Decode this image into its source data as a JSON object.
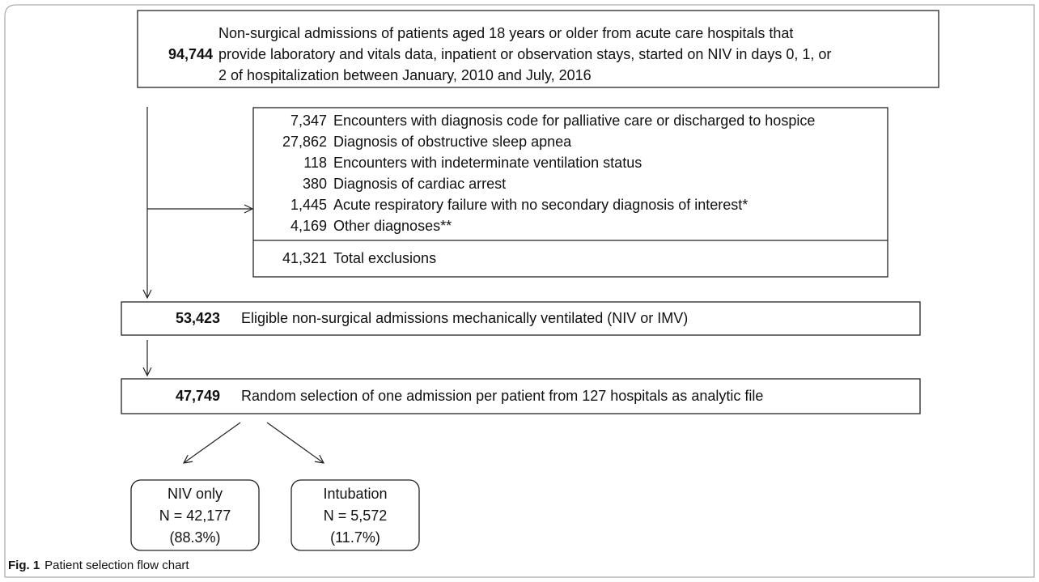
{
  "initial": {
    "count": "94,744",
    "lines": [
      "Non-surgical admissions of patients aged 18 years or older from acute care hospitals that",
      "provide laboratory and vitals data, inpatient or observation stays, started on NIV in days 0, 1, or",
      "2 of hospitalization between January, 2010 and July, 2016"
    ]
  },
  "exclusions": {
    "items": [
      {
        "count": "7,347",
        "label": "Encounters with diagnosis code for palliative care or discharged to hospice"
      },
      {
        "count": "27,862",
        "label": "Diagnosis of obstructive sleep apnea"
      },
      {
        "count": "118",
        "label": "Encounters with indeterminate ventilation status"
      },
      {
        "count": "380",
        "label": "Diagnosis of cardiac arrest"
      },
      {
        "count": "1,445",
        "label": "Acute respiratory failure with no secondary diagnosis of interest*"
      },
      {
        "count": "4,169",
        "label": "Other diagnoses**"
      }
    ],
    "total": {
      "count": "41,321",
      "label": "Total exclusions"
    }
  },
  "eligible": {
    "count": "53,423",
    "label": "Eligible non-surgical admissions mechanically ventilated (NIV or IMV)"
  },
  "selection": {
    "count": "47,749",
    "label": "Random selection of one admission per patient from 127 hospitals as analytic file"
  },
  "outcomes": [
    {
      "label": "NIV only",
      "n": "N = 42,177",
      "pct": "(88.3%)"
    },
    {
      "label": "Intubation",
      "n": "N = 5,572",
      "pct": "(11.7%)"
    }
  ],
  "caption": {
    "label": "Fig. 1",
    "text": "Patient selection flow chart"
  }
}
